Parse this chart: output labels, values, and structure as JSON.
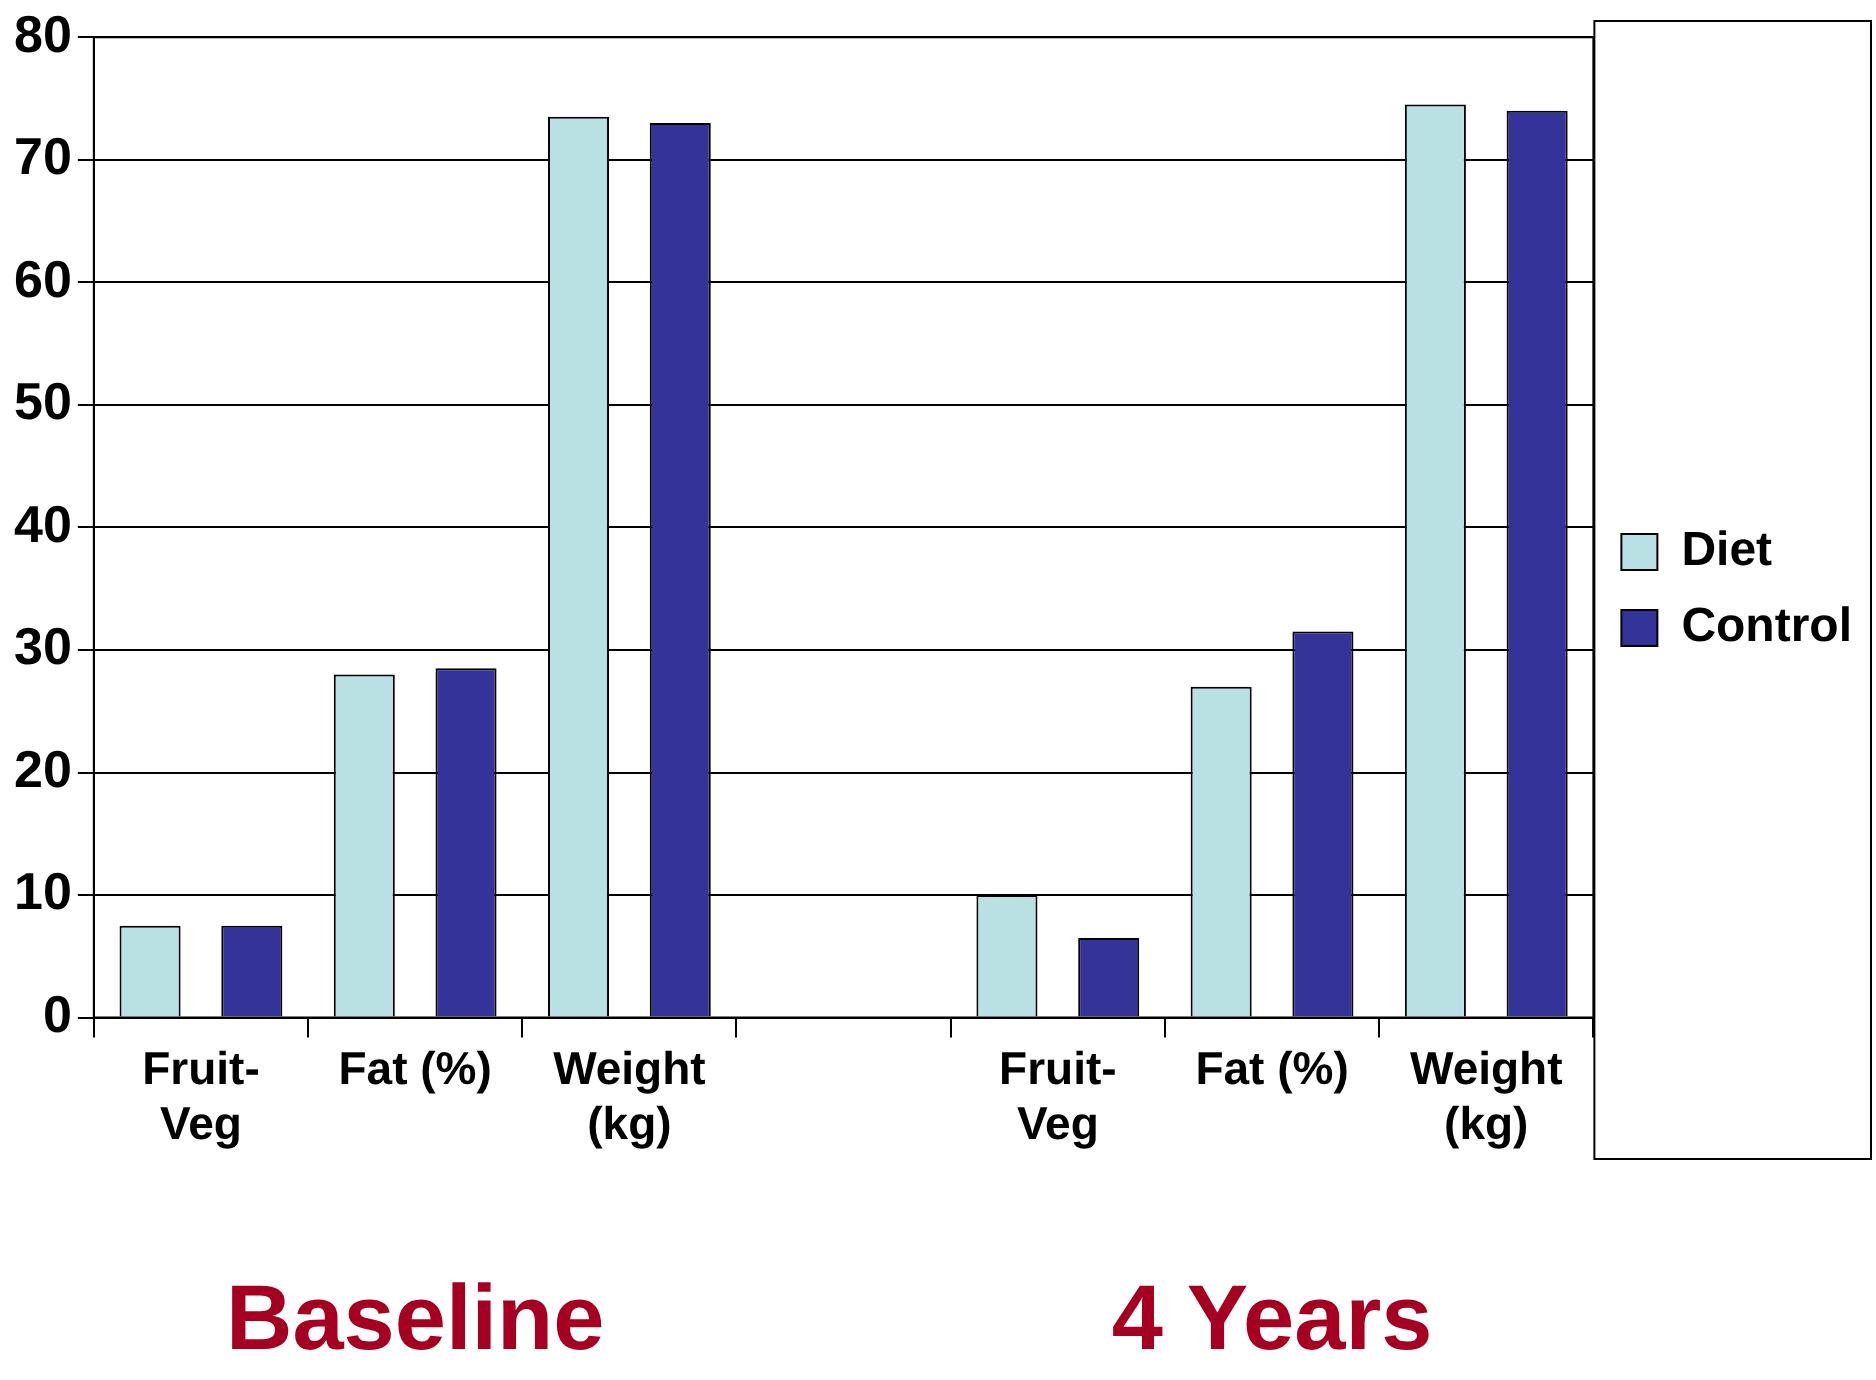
{
  "chart_data": {
    "type": "bar",
    "categories": [
      "Fruit-Veg",
      "Fat (%)",
      "Weight (kg)",
      null,
      "Fruit-Veg",
      "Fat (%)",
      "Weight (kg)"
    ],
    "series": [
      {
        "name": "Diet",
        "color": "#b9e0e3",
        "values": [
          7.5,
          28,
          73.5,
          null,
          10,
          27,
          74.5
        ]
      },
      {
        "name": "Control",
        "color": "#333399",
        "values": [
          7.5,
          28.5,
          73,
          null,
          6.5,
          31.5,
          74
        ]
      }
    ],
    "ylim": [
      0,
      80
    ],
    "yticks": [
      0,
      10,
      20,
      30,
      40,
      50,
      60,
      70,
      80
    ],
    "grid": "y",
    "legend": "right",
    "annotations": [
      "Baseline",
      "4 Years"
    ]
  }
}
